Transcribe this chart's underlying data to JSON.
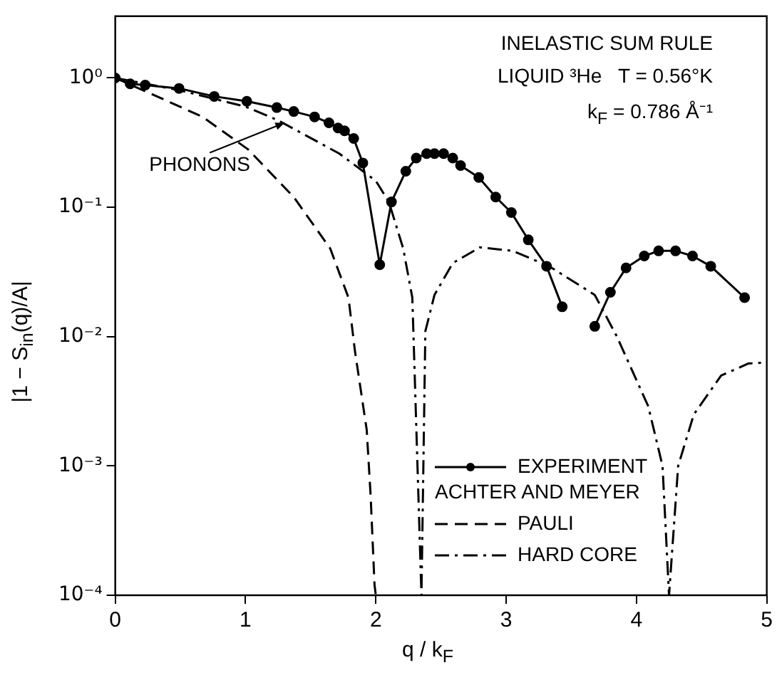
{
  "chart_data": {
    "type": "line",
    "title": "INELASTIC SUM RULE",
    "xlabel": "q / k$_{F}$",
    "ylabel": "|1 − S$_{in}$(q)/A|",
    "annotations": [
      {
        "text": "PHONONS",
        "x": 1.3,
        "y": 0.45
      },
      "LIQUID ³He   T = 0.56°K",
      "k$_{F}$ = 0.786 Å⁻¹"
    ],
    "log": "y",
    "grid": false,
    "legend": "bottom right",
    "xlim": [
      0,
      5
    ],
    "xticks": [
      0,
      1,
      2,
      3,
      4,
      5
    ],
    "ylim": [
      0.0001,
      3
    ],
    "yticks": [
      {
        "value": 0.0001,
        "label": "10⁻⁴"
      },
      {
        "value": 0.001,
        "label": "10⁻³"
      },
      {
        "value": 0.01,
        "label": "10⁻²"
      },
      {
        "value": 0.1,
        "label": "10⁻¹"
      },
      {
        "value": 1,
        "label": "10⁰"
      }
    ],
    "series": [
      {
        "name": "EXPERIMENT ACHTER AND MEYER",
        "color": "#000000",
        "marker": "circle",
        "line_style": "solid",
        "x": [
          0,
          0.115,
          0.23,
          0.49,
          0.76,
          1.01,
          1.24,
          1.37,
          1.53,
          1.64,
          1.71,
          1.76,
          1.83,
          1.9,
          2.03,
          2.12,
          2.23,
          2.31,
          2.39,
          2.45,
          2.52,
          2.59,
          2.65,
          2.79,
          2.92,
          3.04,
          3.17,
          3.31,
          3.43,
          3.55,
          3.68,
          3.8,
          3.92,
          4.06,
          4.17,
          4.3,
          4.43,
          4.57,
          4.83
        ],
        "values": [
          1.0,
          0.9,
          0.88,
          0.83,
          0.72,
          0.66,
          0.59,
          0.55,
          0.5,
          0.45,
          0.41,
          0.39,
          0.34,
          0.22,
          0.036,
          0.11,
          0.19,
          0.24,
          0.26,
          0.26,
          0.26,
          0.24,
          0.21,
          0.17,
          0.12,
          0.091,
          0.056,
          0.035,
          0.017,
          null,
          0.012,
          0.022,
          0.034,
          0.042,
          0.046,
          0.046,
          0.042,
          0.035,
          0.02
        ]
      },
      {
        "name": "PAULI",
        "color": "#000000",
        "marker": "none",
        "line_style": "dashed",
        "x": [
          0,
          0.32,
          0.67,
          1.02,
          1.37,
          1.65,
          1.79,
          1.84,
          1.93,
          1.96,
          1.99,
          2.0
        ],
        "values": [
          1.0,
          0.72,
          0.5,
          0.28,
          0.12,
          0.048,
          0.02,
          0.0077,
          0.0019,
          0.00059,
          0.00012,
          0.0001
        ]
      },
      {
        "name": "HARD CORE",
        "color": "#000000",
        "marker": "none",
        "line_style": "dashdot",
        "x": [
          0,
          0.5,
          1.0,
          1.25,
          1.72,
          2.0,
          2.1,
          2.21,
          2.28,
          2.35,
          2.38,
          2.45,
          2.59,
          2.8,
          3.05,
          3.33,
          3.68,
          3.85,
          4.09,
          4.2,
          4.25,
          4.32,
          4.44,
          4.65,
          4.86,
          5.0
        ],
        "values": [
          1.0,
          0.8,
          0.6,
          0.47,
          0.26,
          0.16,
          0.11,
          0.048,
          0.02,
          0.0001,
          0.011,
          0.021,
          0.037,
          0.049,
          0.046,
          0.035,
          0.021,
          0.01,
          0.0029,
          0.001,
          0.0001,
          0.001,
          0.0025,
          0.005,
          0.0062,
          0.0063
        ]
      }
    ]
  }
}
